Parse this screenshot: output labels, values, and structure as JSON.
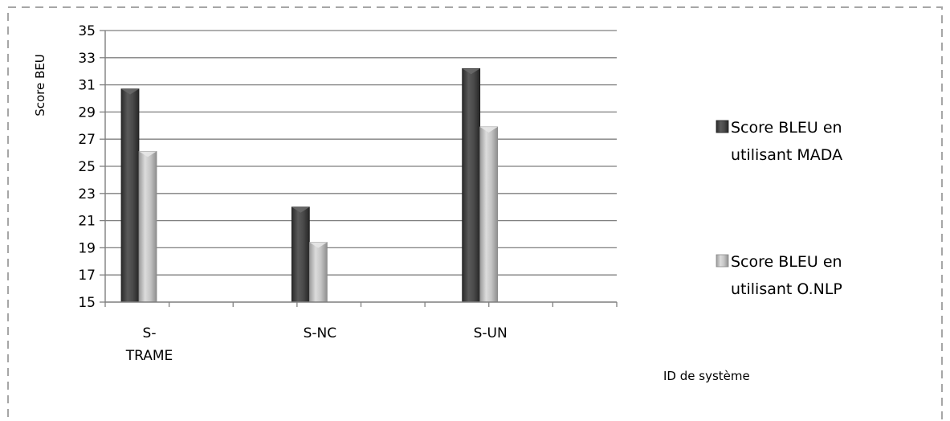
{
  "chart_data": {
    "type": "bar",
    "title": "",
    "ylabel": "Score BEU",
    "xlabel": "ID de système",
    "ylim": [
      15,
      35
    ],
    "yticks": [
      15,
      17,
      19,
      21,
      23,
      25,
      27,
      29,
      31,
      33,
      35
    ],
    "grid": true,
    "legend_position": "right",
    "categories": [
      "S-TRAME",
      "S-NC",
      "S-UN"
    ],
    "category_label_lines": [
      [
        "S-",
        "TRAME"
      ],
      [
        "S-NC"
      ],
      [
        "S-UN"
      ]
    ],
    "series": [
      {
        "name": "Score BLEU en utilisant MADA",
        "name_lines": [
          "Score BLEU en",
          "utilisant MADA"
        ],
        "values": [
          30.7,
          22.0,
          32.2
        ],
        "color": "#444444"
      },
      {
        "name": "Score BLEU en utilisant O.NLP",
        "name_lines": [
          "Score BLEU en",
          "utilisant O.NLP"
        ],
        "values": [
          26.1,
          19.4,
          27.9
        ],
        "color": "#b8b8b8"
      }
    ]
  },
  "colors": {
    "frame_border": "#a6a6a6",
    "gridline": "#7f7f7f",
    "series_dark": "#444444",
    "series_light": "#b8b8b8"
  }
}
